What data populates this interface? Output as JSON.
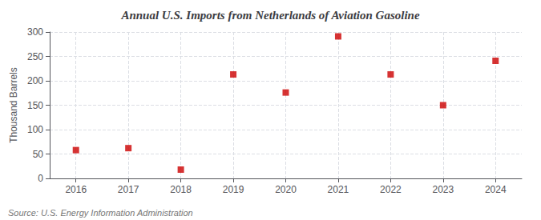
{
  "chart_data": {
    "type": "scatter",
    "title": "Annual U.S. Imports from Netherlands of Aviation Gasoline",
    "ylabel": "Thousand Barrels",
    "annotations": [
      "Source: U.S. Energy Information Administration"
    ],
    "x": [
      2016,
      2017,
      2018,
      2019,
      2020,
      2021,
      2022,
      2023,
      2024
    ],
    "values": [
      58,
      62,
      18,
      213,
      176,
      291,
      213,
      150,
      241
    ],
    "color": "#cc0000",
    "marker": "square",
    "xlim": [
      2015.5,
      2024.5
    ],
    "xticks": [
      2016,
      2017,
      2018,
      2019,
      2020,
      2021,
      2022,
      2023,
      2024
    ],
    "ylim": [
      0,
      300
    ],
    "yticks": [
      0,
      50,
      100,
      150,
      200,
      250,
      300
    ],
    "grid": true
  }
}
